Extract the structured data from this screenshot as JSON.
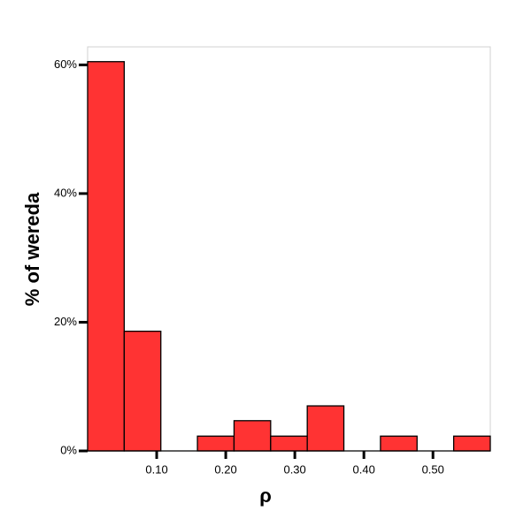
{
  "chart_data": {
    "type": "histogram",
    "x_label": "ρ",
    "y_label": "% of wereda",
    "bins": [
      0,
      0.053,
      0.106,
      0.159,
      0.212,
      0.265,
      0.318,
      0.371,
      0.424,
      0.477,
      0.53,
      0.583
    ],
    "values": [
      60.5,
      18.6,
      0,
      2.3,
      4.7,
      2.3,
      7.0,
      0,
      2.3,
      0,
      2.3
    ],
    "color": "#ff3333",
    "xlim": [
      0,
      0.583
    ],
    "ylim": [
      0,
      62.8
    ],
    "xticks": [
      {
        "value": 0.1,
        "label": "0.10"
      },
      {
        "value": 0.2,
        "label": "0.20"
      },
      {
        "value": 0.3,
        "label": "0.30"
      },
      {
        "value": 0.4,
        "label": "0.40"
      },
      {
        "value": 0.5,
        "label": "0.50"
      }
    ],
    "yticks": [
      {
        "value": 0,
        "label": "0%"
      },
      {
        "value": 20,
        "label": "20%"
      },
      {
        "value": 40,
        "label": "40%"
      },
      {
        "value": 60,
        "label": "60%"
      }
    ]
  }
}
